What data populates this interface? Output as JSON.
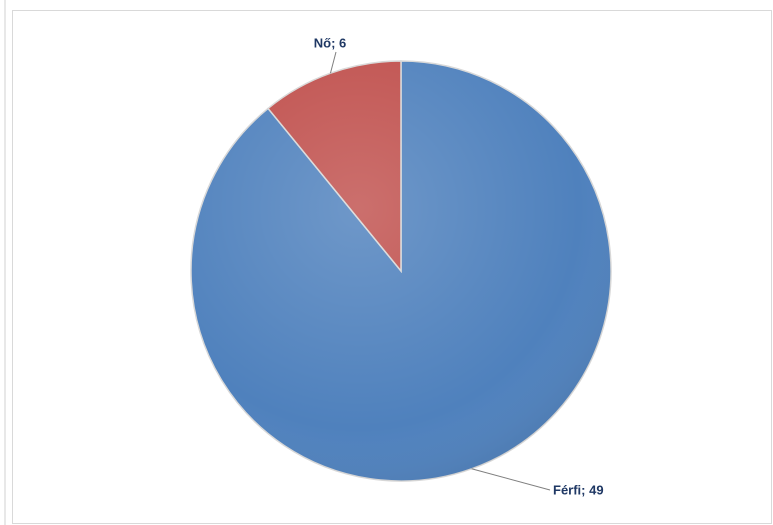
{
  "chart_data": {
    "type": "pie",
    "values": [
      49,
      6
    ],
    "value_labels": [
      "Férfi; 49",
      "Nő; 6"
    ],
    "colors": [
      "#4f81bd",
      "#c0504d"
    ]
  }
}
